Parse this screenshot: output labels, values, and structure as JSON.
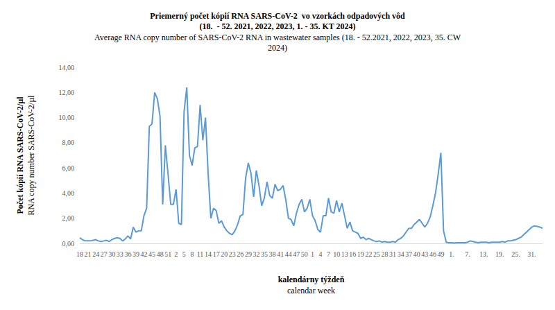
{
  "chart_data": {
    "type": "line",
    "title": "Priemerný počet kópií RNA SARS-CoV-2  vo vzorkách odpadových vôd\n(18.  - 52. 2021, 2022, 2023, 1. - 35. KT 2024)",
    "subtitle": "Average RNA copy number of SARS-CoV-2 RNA in wastewater samples (18. - 52.2021, 2022, 2023, 35. CW\n2024)",
    "xlabel": "kalendárny týždeň\ncalendar week",
    "ylabel": "Počet kópií RNA SARS-CoV-2/µl\nRNA copy number SARS-CoV-2/µl",
    "categories": [
      "18",
      null,
      null,
      "21",
      null,
      null,
      "24",
      null,
      null,
      "27",
      null,
      null,
      "30",
      null,
      null,
      "33",
      null,
      null,
      "36",
      null,
      null,
      "39",
      null,
      null,
      "42",
      null,
      null,
      "45",
      null,
      null,
      "48",
      null,
      null,
      "51",
      null,
      null,
      "2",
      null,
      null,
      "5",
      null,
      null,
      "8",
      null,
      null,
      "11",
      null,
      null,
      "14",
      null,
      null,
      "17",
      null,
      null,
      "20",
      null,
      null,
      "23",
      null,
      null,
      "26",
      null,
      null,
      "29",
      null,
      null,
      "32",
      null,
      null,
      "35",
      null,
      null,
      "38",
      null,
      null,
      "41",
      null,
      null,
      "44",
      null,
      null,
      "47",
      null,
      null,
      "50",
      null,
      null,
      "1",
      null,
      null,
      "4",
      null,
      null,
      "7",
      null,
      null,
      "10",
      null,
      null,
      "13",
      null,
      null,
      "16",
      null,
      null,
      "19",
      null,
      null,
      "22",
      null,
      null,
      "25",
      null,
      null,
      "28",
      null,
      null,
      "31",
      null,
      null,
      "34",
      null,
      null,
      "37",
      null,
      null,
      "40",
      null,
      null,
      "43",
      null,
      null,
      "46",
      null,
      null,
      "49",
      null,
      null,
      null,
      "1.",
      null,
      null,
      null,
      null,
      null,
      "7.",
      null,
      null,
      null,
      null,
      null,
      "13.",
      null,
      null,
      null,
      null,
      null,
      "19.",
      null,
      null,
      null,
      null,
      null,
      "25.",
      null,
      null,
      null,
      null,
      null,
      "31.",
      null,
      null,
      null,
      null
    ],
    "values": [
      0.45,
      0.3,
      0.2,
      0.2,
      0.2,
      0.25,
      0.3,
      0.2,
      0.15,
      0.2,
      0.25,
      0.15,
      0.3,
      0.4,
      0.45,
      0.4,
      0.2,
      0.35,
      0.6,
      0.35,
      1.3,
      0.9,
      1.0,
      1.0,
      2.2,
      2.8,
      9.3,
      9.5,
      12.0,
      11.5,
      10.1,
      3.1,
      7.8,
      5.5,
      3.1,
      3.1,
      4.3,
      1.6,
      1.5,
      10.5,
      12.4,
      7.0,
      6.2,
      7.6,
      7.7,
      11.0,
      8.2,
      10.0,
      5.5,
      2.0,
      2.8,
      2.6,
      1.6,
      1.8,
      1.3,
      1.0,
      0.8,
      0.7,
      1.0,
      1.5,
      2.2,
      2.3,
      5.2,
      6.4,
      5.6,
      3.7,
      5.8,
      4.6,
      3.0,
      3.6,
      4.9,
      3.8,
      3.6,
      4.7,
      4.2,
      4.3,
      4.6,
      3.5,
      2.0,
      1.9,
      1.4,
      2.4,
      3.1,
      3.5,
      2.5,
      2.8,
      3.5,
      2.2,
      1.8,
      1.1,
      0.9,
      2.2,
      2.2,
      3.6,
      2.5,
      2.4,
      3.4,
      2.5,
      3.2,
      2.2,
      1.2,
      1.7,
      1.0,
      0.9,
      0.8,
      0.4,
      0.5,
      0.3,
      0.4,
      0.3,
      0.2,
      0.15,
      0.2,
      0.1,
      0.15,
      0.1,
      0.1,
      0.15,
      0.1,
      0.3,
      0.4,
      0.6,
      0.9,
      1.2,
      1.2,
      1.5,
      1.7,
      1.9,
      1.6,
      1.3,
      1.6,
      2.1,
      3.0,
      4.0,
      5.5,
      7.2,
      1.0,
      0.1,
      0.05,
      0.05,
      0.03,
      0.05,
      0.05,
      0.05,
      0.05,
      0.1,
      0.2,
      0.15,
      0.1,
      0.05,
      0.1,
      0.1,
      0.1,
      0.05,
      0.1,
      0.1,
      0.1,
      0.1,
      0.15,
      0.1,
      0.2,
      0.2,
      0.25,
      0.3,
      0.4,
      0.5,
      0.7,
      0.9,
      1.1,
      1.3,
      1.4,
      1.35,
      1.3,
      1.2
    ],
    "color": "#5b9bd5",
    "ylim": [
      0,
      14
    ],
    "yticks": [
      {
        "value": 0,
        "label": "0,00"
      },
      {
        "value": 2,
        "label": "2,00"
      },
      {
        "value": 4,
        "label": "4,00"
      },
      {
        "value": 6,
        "label": "6,00"
      },
      {
        "value": 8,
        "label": "8,00"
      },
      {
        "value": 10,
        "label": "10,00"
      },
      {
        "value": 12,
        "label": "12,00"
      },
      {
        "value": 14,
        "label": "14,00"
      }
    ],
    "grid": false
  }
}
